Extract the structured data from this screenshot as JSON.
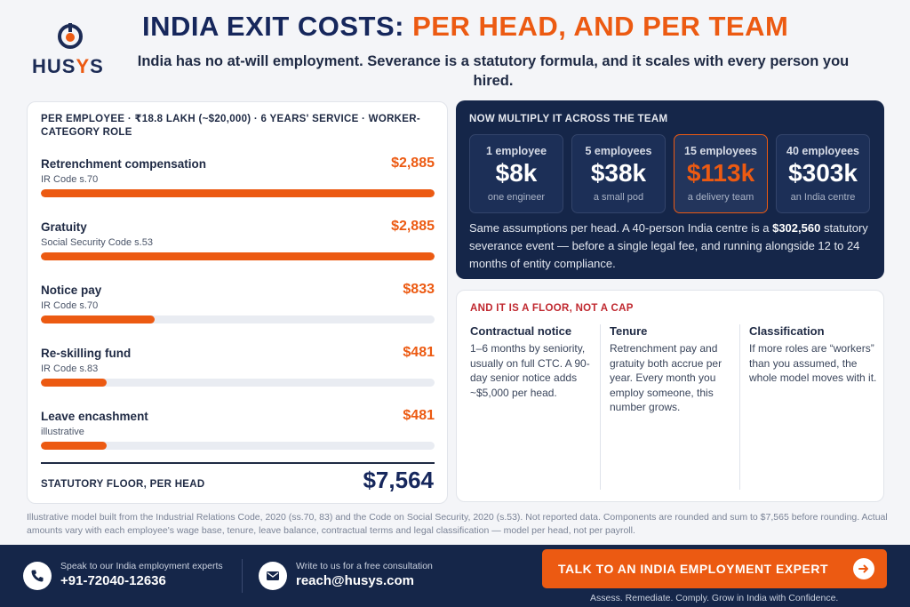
{
  "brand": {
    "logo_text_before": "HUS",
    "logo_text_accent": "Y",
    "logo_text_after": "S"
  },
  "header": {
    "title_dark": "INDIA EXIT COSTS: ",
    "title_accent": "PER HEAD, AND PER TEAM",
    "subtitle": "India has no at-will employment. Severance is a statutory formula, and it scales with every person you hired."
  },
  "per_employee": {
    "heading": "PER EMPLOYEE · ₹18.8 LAKH (~$20,000) · 6 YEARS' SERVICE · WORKER-CATEGORY ROLE",
    "rows": [
      {
        "label": "Retrenchment compensation",
        "sub": "IR Code s.70",
        "value": "$2,885",
        "amount": 2885
      },
      {
        "label": "Gratuity",
        "sub": "Social Security Code s.53",
        "value": "$2,885",
        "amount": 2885
      },
      {
        "label": "Notice pay",
        "sub": "IR Code s.70",
        "value": "$833",
        "amount": 833
      },
      {
        "label": "Re-skilling fund",
        "sub": "IR Code s.83",
        "value": "$481",
        "amount": 481
      },
      {
        "label": "Leave encashment",
        "sub": "illustrative",
        "value": "$481",
        "amount": 481
      }
    ],
    "total_label": "STATUTORY FLOOR, PER HEAD",
    "total_value": "$7,564"
  },
  "team": {
    "heading": "NOW MULTIPLY IT ACROSS THE TEAM",
    "tiles": [
      {
        "count": "1 employee",
        "amount": "$8k",
        "desc": "one engineer"
      },
      {
        "count": "5 employees",
        "amount": "$38k",
        "desc": "a small pod"
      },
      {
        "count": "15 employees",
        "amount": "$113k",
        "desc": "a delivery team",
        "highlight": true
      },
      {
        "count": "40 employees",
        "amount": "$303k",
        "desc": "an India centre"
      }
    ],
    "body_before": "Same assumptions per head. A 40-person India centre is a ",
    "body_bold": "$302,560",
    "body_after": " statutory severance event — before a single legal fee, and running alongside 12 to 24 months of entity compliance."
  },
  "floor": {
    "heading": "AND IT IS A FLOOR, NOT A CAP",
    "columns": [
      {
        "title": "Contractual notice",
        "body": "1–6 months by seniority, usually on full CTC. A 90-day senior notice adds ~$5,000 per head."
      },
      {
        "title": "Tenure",
        "body": "Retrenchment pay and gratuity both accrue per year. Every month you employ someone, this number grows."
      },
      {
        "title": "Classification",
        "body": "If more roles are “workers” than you assumed, the whole model moves with it."
      }
    ]
  },
  "footnote": "Illustrative model built from the Industrial Relations Code, 2020 (ss.70, 83) and the Code on Social Security, 2020 (s.53). Not reported data. Components are rounded and sum to $7,565 before rounding. Actual amounts vary with each employee's wage base, tenure, leave balance, contractual terms and legal classification — model per head, not per payroll.",
  "footer": {
    "phone_small": "Speak to our India employment experts",
    "phone": "+91-72040-12636",
    "email_small": "Write to us for a free consultation",
    "email": "reach@husys.com",
    "cta_label": "TALK TO AN INDIA EMPLOYMENT EXPERT",
    "tagline": "Assess. Remediate. Comply. Grow in India with Confidence."
  },
  "colors": {
    "accent": "#ec5a12",
    "navy": "#152649",
    "warning_red": "#c0282f"
  },
  "icons": {
    "phone": "phone-icon",
    "email": "mail-icon",
    "cta": "arrow-right-icon"
  }
}
